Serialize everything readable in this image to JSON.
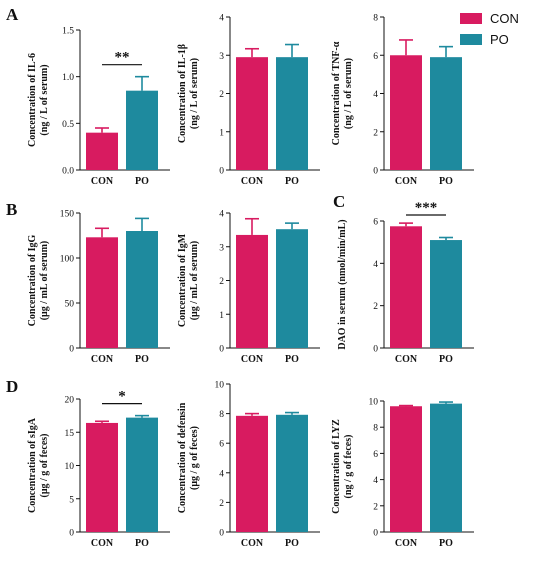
{
  "colors": {
    "CON": "#d81b60",
    "PO": "#1e8a9e"
  },
  "panel_letters": [
    "A",
    "B",
    "C",
    "D"
  ],
  "legend": [
    {
      "label": "CON",
      "color": "#d81b60"
    },
    {
      "label": "PO",
      "color": "#1e8a9e"
    }
  ],
  "chart_data": [
    {
      "type": "bar",
      "panel": "A",
      "ylabel_lines": [
        "Concentration of IL-6",
        "(ng / L of serum)"
      ],
      "categories": [
        "CON",
        "PO"
      ],
      "values": [
        0.4,
        0.85
      ],
      "errors": [
        0.05,
        0.15
      ],
      "ylim": [
        0,
        1.5
      ],
      "yticks": [
        "0.0",
        "0.5",
        "1.0",
        "1.5"
      ],
      "significance": "**"
    },
    {
      "type": "bar",
      "panel": "A",
      "ylabel_lines": [
        "Concentration of IL-1β",
        "(ng / L of serum)"
      ],
      "categories": [
        "CON",
        "PO"
      ],
      "values": [
        2.95,
        2.95
      ],
      "errors": [
        0.22,
        0.33
      ],
      "ylim": [
        0,
        4
      ],
      "yticks": [
        "0",
        "1",
        "2",
        "3",
        "4"
      ],
      "significance": ""
    },
    {
      "type": "bar",
      "panel": "A",
      "ylabel_lines": [
        "Concentration of TNF-α",
        "(ng / L of serum)"
      ],
      "categories": [
        "CON",
        "PO"
      ],
      "values": [
        6.0,
        5.9
      ],
      "errors": [
        0.8,
        0.55
      ],
      "ylim": [
        0,
        8
      ],
      "yticks": [
        "0",
        "2",
        "4",
        "6",
        "8"
      ],
      "significance": ""
    },
    {
      "type": "bar",
      "panel": "B",
      "ylabel_lines": [
        "Concentration of IgG",
        "(μg / mL of serum)"
      ],
      "categories": [
        "CON",
        "PO"
      ],
      "values": [
        123,
        130
      ],
      "errors": [
        10,
        14
      ],
      "ylim": [
        0,
        150
      ],
      "yticks": [
        "0",
        "50",
        "100",
        "150"
      ],
      "significance": ""
    },
    {
      "type": "bar",
      "panel": "B",
      "ylabel_lines": [
        "Concentration of IgM",
        "(μg / mL of serum)"
      ],
      "categories": [
        "CON",
        "PO"
      ],
      "values": [
        3.35,
        3.52
      ],
      "errors": [
        0.48,
        0.18
      ],
      "ylim": [
        0,
        4
      ],
      "yticks": [
        "0",
        "1",
        "2",
        "3",
        "4"
      ],
      "significance": ""
    },
    {
      "type": "bar",
      "panel": "C",
      "ylabel_lines": [
        "DAO in serum (nmol/min/mL)"
      ],
      "categories": [
        "CON",
        "PO"
      ],
      "values": [
        5.75,
        5.1
      ],
      "errors": [
        0.15,
        0.12
      ],
      "ylim": [
        0,
        6
      ],
      "yticks": [
        "0",
        "2",
        "4",
        "6"
      ],
      "significance": "***"
    },
    {
      "type": "bar",
      "panel": "D",
      "ylabel_lines": [
        "Concentration of sIgA",
        "(μg / g of feces)"
      ],
      "categories": [
        "CON",
        "PO"
      ],
      "values": [
        16.4,
        17.2
      ],
      "errors": [
        0.25,
        0.3
      ],
      "ylim": [
        0,
        20
      ],
      "yticks": [
        "0",
        "5",
        "10",
        "15",
        "20"
      ],
      "significance": "*"
    },
    {
      "type": "bar",
      "panel": "D",
      "ylabel_lines": [
        "Concentration of defensin",
        "(μg / g of feces)"
      ],
      "categories": [
        "CON",
        "PO"
      ],
      "values": [
        7.85,
        7.92
      ],
      "errors": [
        0.15,
        0.15
      ],
      "ylim": [
        0,
        10
      ],
      "yticks": [
        "0",
        "2",
        "4",
        "6",
        "8",
        "10"
      ],
      "significance": ""
    },
    {
      "type": "bar",
      "panel": "D",
      "ylabel_lines": [
        "Concentration of LYZ",
        "(ng / g of feces)"
      ],
      "categories": [
        "CON",
        "PO"
      ],
      "values": [
        9.6,
        9.8
      ],
      "errors": [
        0.05,
        0.12
      ],
      "ylim": [
        0,
        10
      ],
      "yticks": [
        "0",
        "2",
        "4",
        "6",
        "8",
        "10"
      ],
      "significance": ""
    }
  ]
}
